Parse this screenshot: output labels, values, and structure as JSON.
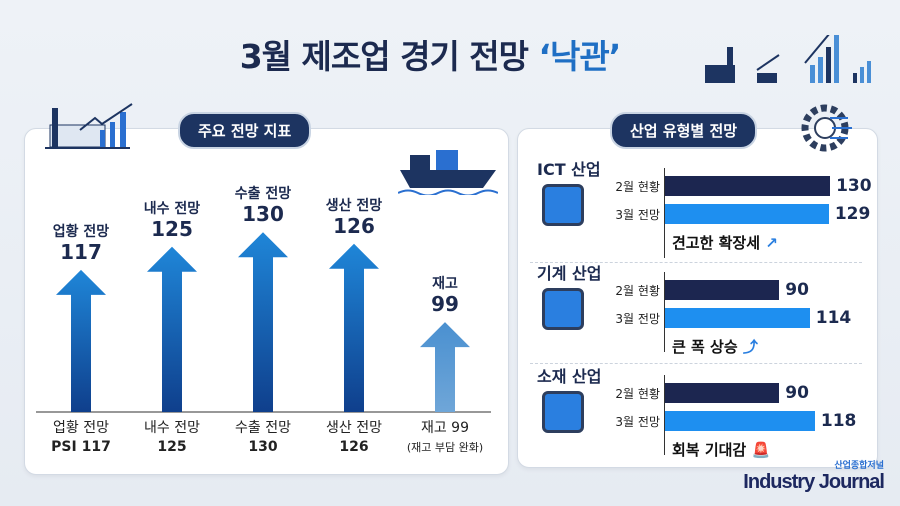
{
  "title": {
    "main": "3월 제조업 경기 전망 ",
    "highlight": "‘낙관’"
  },
  "left_panel": {
    "pill": "주요 전망 지표"
  },
  "right_panel": {
    "pill": "산업 유형별 전망"
  },
  "chart_data": [
    {
      "type": "bar",
      "orientation": "vertical",
      "marks": "arrows",
      "categories": [
        "업황 전망",
        "내수 전망",
        "수출 전망",
        "생산 전망",
        "재고"
      ],
      "values": [
        117,
        125,
        130,
        126,
        99
      ],
      "top_labels": [
        {
          "name": "업황 전망",
          "value": "117"
        },
        {
          "name": "내수 전망",
          "value": "125"
        },
        {
          "name": "수출 전망",
          "value": "130"
        },
        {
          "name": "생산 전망",
          "value": "126"
        },
        {
          "name": "재고",
          "value": "99"
        }
      ],
      "bottom_labels": [
        {
          "l1": "업황 전망",
          "l2": "PSI 117"
        },
        {
          "l1": "내수 전망",
          "l2": "125"
        },
        {
          "l1": "수출 전망",
          "l2": "130"
        },
        {
          "l1": "생산 전망",
          "l2": "126"
        },
        {
          "l1": "재고 99",
          "l2": "(재고 부담 완화)"
        }
      ],
      "colors": {
        "main": "#1a5fb4",
        "inventory": "#4a90d0"
      }
    },
    {
      "type": "bar",
      "orientation": "horizontal",
      "groups": [
        {
          "name": "ICT 산업",
          "comment": "견고한 확장세",
          "icon": "chip-icon",
          "comment_icon": "trend-up-icon"
        },
        {
          "name": "기계 산업",
          "comment": "큰 폭 상승",
          "icon": "robot-arm-icon",
          "comment_icon": "arrow-up-icon"
        },
        {
          "name": "소재 산업",
          "comment": "회복 기대감",
          "icon": "gear-ingot-icon",
          "comment_icon": "siren-icon"
        }
      ],
      "series": [
        {
          "name": "2월 현황",
          "values": [
            130,
            90,
            90
          ],
          "color": "#1c2650"
        },
        {
          "name": "3월 전망",
          "values": [
            129,
            114,
            118
          ],
          "color": "#1e8ff0"
        }
      ]
    }
  ],
  "brand": {
    "korean": "산업종합저널",
    "english": "Industry Journal"
  }
}
